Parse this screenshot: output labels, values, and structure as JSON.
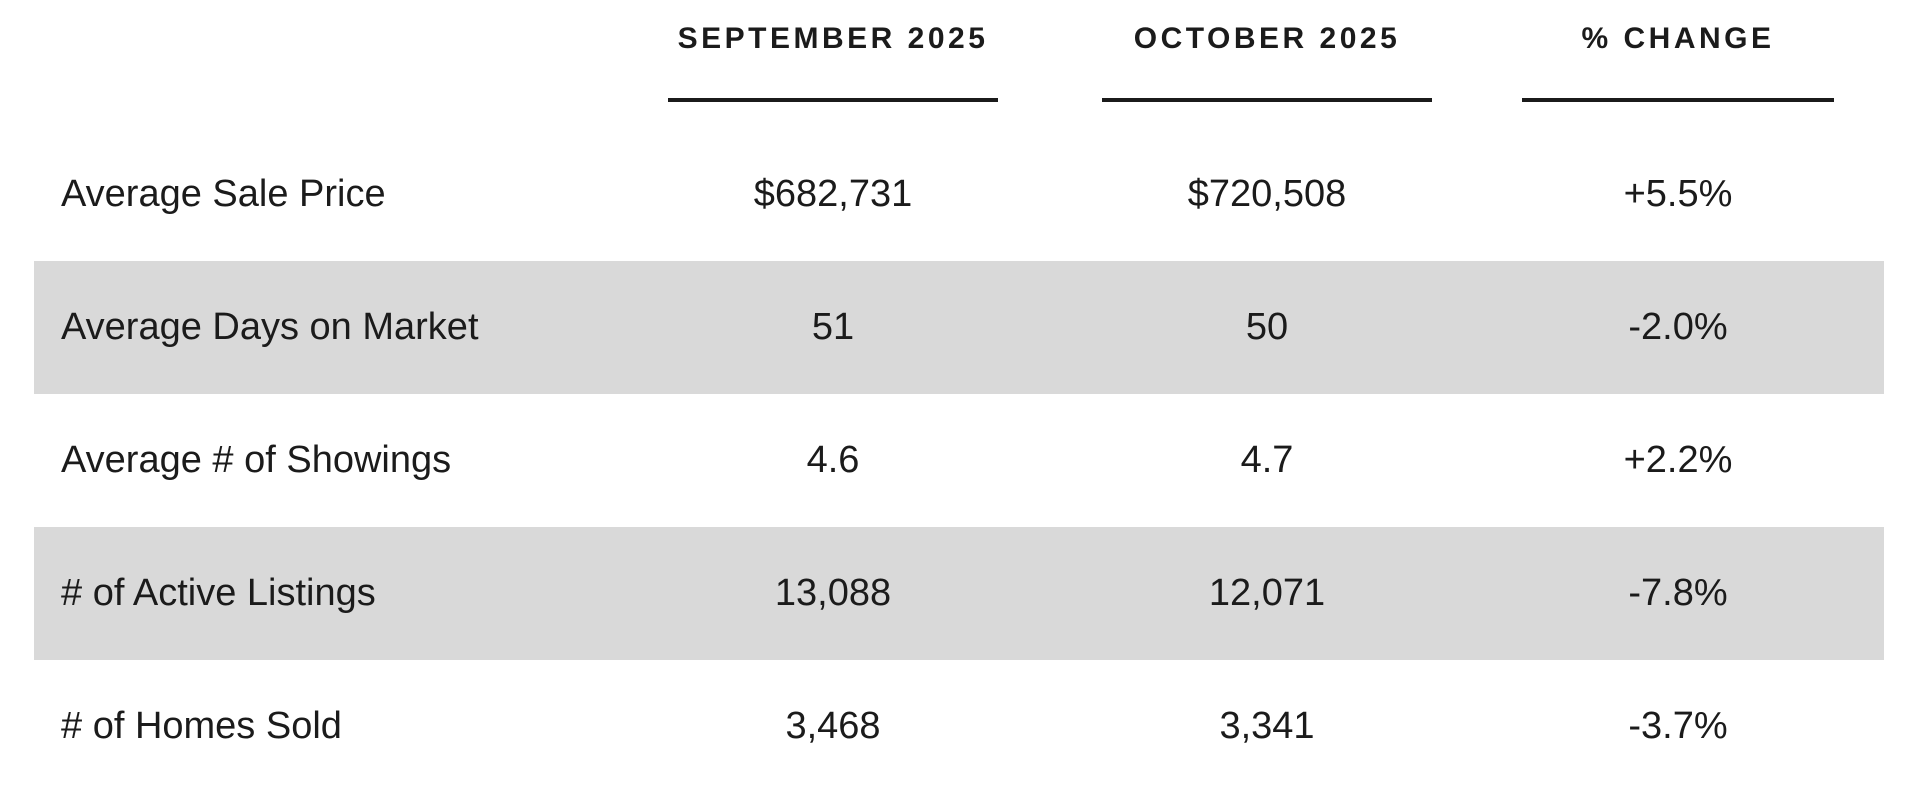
{
  "colors": {
    "stripe": "#d9d9d9",
    "text": "#1b1b1b",
    "background": "#ffffff"
  },
  "table": {
    "headers": {
      "september": "SEPTEMBER 2025",
      "october": "OCTOBER 2025",
      "change": "% CHANGE"
    },
    "rows": [
      {
        "label": "Average Sale Price",
        "september": "$682,731",
        "october": "$720,508",
        "change": "+5.5%"
      },
      {
        "label": "Average Days on Market",
        "september": "51",
        "october": "50",
        "change": "-2.0%"
      },
      {
        "label": "Average # of Showings",
        "september": "4.6",
        "october": "4.7",
        "change": "+2.2%"
      },
      {
        "label": "# of Active Listings",
        "september": "13,088",
        "october": "12,071",
        "change": "-7.8%"
      },
      {
        "label": "# of Homes Sold",
        "september": "3,468",
        "october": "3,341",
        "change": "-3.7%"
      }
    ]
  },
  "chart_data": {
    "type": "table",
    "title": "",
    "categories": [
      "Average Sale Price",
      "Average Days on Market",
      "Average # of Showings",
      "# of Active Listings",
      "# of Homes Sold"
    ],
    "series": [
      {
        "name": "SEPTEMBER 2025",
        "values": [
          "$682,731",
          "51",
          "4.6",
          "13,088",
          "3,468"
        ]
      },
      {
        "name": "OCTOBER 2025",
        "values": [
          "$720,508",
          "50",
          "4.7",
          "12,071",
          "3,341"
        ]
      },
      {
        "name": "% CHANGE",
        "values": [
          "+5.5%",
          "-2.0%",
          "+2.2%",
          "-7.8%",
          "-3.7%"
        ]
      }
    ],
    "layout": {
      "striped_rows": [
        2,
        4
      ],
      "value_alignment": "center",
      "label_alignment": "left"
    }
  }
}
